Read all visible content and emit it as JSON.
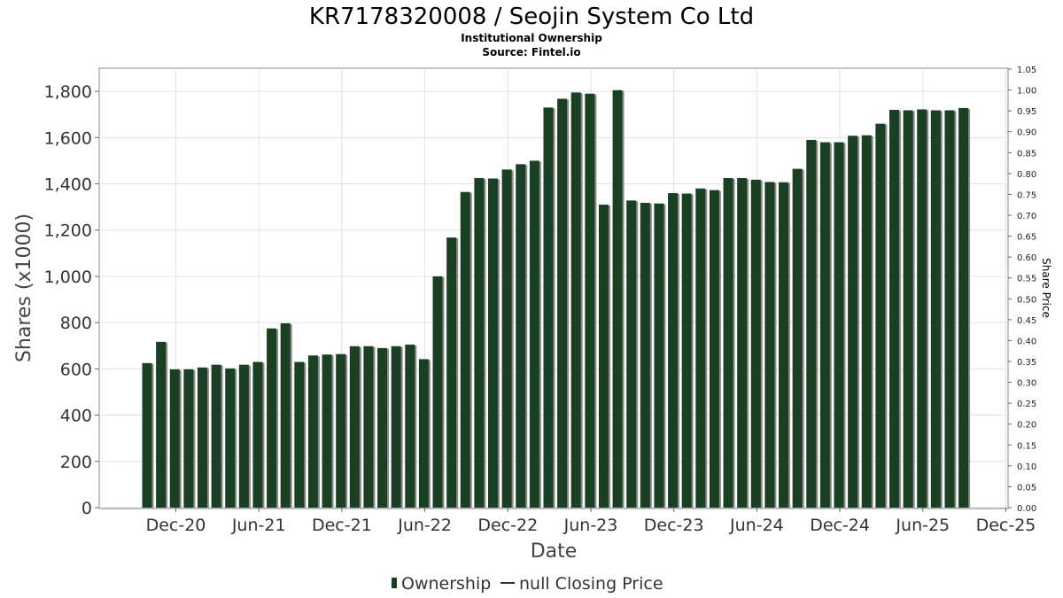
{
  "title": "KR7178320008 / Seojin System Co Ltd",
  "subtitle": "Institutional Ownership",
  "source": "Source: Fintel.io",
  "legend": {
    "ownership": "Ownership",
    "price": "null Closing Price"
  },
  "colors": {
    "bar": "#1a4024",
    "bar_shadow": "#8a8a8a",
    "grid": "#e0e0e0",
    "axis": "#888888"
  },
  "chart_data": {
    "type": "bar",
    "title": "KR7178320008 / Seojin System Co Ltd",
    "xlabel": "Date",
    "ylabel": "Shares (x1000)",
    "ylabel_right": "Share Price",
    "ylim": [
      0,
      1900
    ],
    "ylim_right": [
      0,
      1.05
    ],
    "y_ticks": [
      0,
      200,
      400,
      600,
      800,
      1000,
      1200,
      1400,
      1600,
      1800
    ],
    "y_tick_labels": [
      "0",
      "200",
      "400",
      "600",
      "800",
      "1,000",
      "1,200",
      "1,400",
      "1,600",
      "1,800"
    ],
    "y_right_ticks": [
      "0.00",
      "0.05",
      "0.10",
      "0.15",
      "0.20",
      "0.25",
      "0.30",
      "0.35",
      "0.40",
      "0.45",
      "0.50",
      "0.55",
      "0.60",
      "0.65",
      "0.70",
      "0.75",
      "0.80",
      "0.85",
      "0.90",
      "0.95",
      "1.00",
      "1.05"
    ],
    "x_tick_labels": [
      "Dec-20",
      "Jun-21",
      "Dec-21",
      "Jun-22",
      "Dec-22",
      "Jun-23",
      "Dec-23",
      "Jun-24",
      "Dec-24",
      "Jun-25",
      "Dec-25"
    ],
    "grid": true,
    "legend_position": "bottom",
    "series": [
      {
        "name": "Ownership",
        "values": [
          625,
          717,
          598,
          598,
          606,
          618,
          602,
          618,
          630,
          775,
          797,
          630,
          658,
          662,
          664,
          698,
          698,
          690,
          698,
          705,
          642,
          1000,
          1168,
          1365,
          1425,
          1423,
          1462,
          1485,
          1500,
          1730,
          1768,
          1795,
          1790,
          1310,
          1805,
          1328,
          1318,
          1315,
          1360,
          1358,
          1380,
          1373,
          1425,
          1425,
          1418,
          1408,
          1407,
          1465,
          1590,
          1580,
          1580,
          1608,
          1610,
          1660,
          1720,
          1718,
          1722,
          1718,
          1718,
          1728
        ]
      }
    ]
  }
}
